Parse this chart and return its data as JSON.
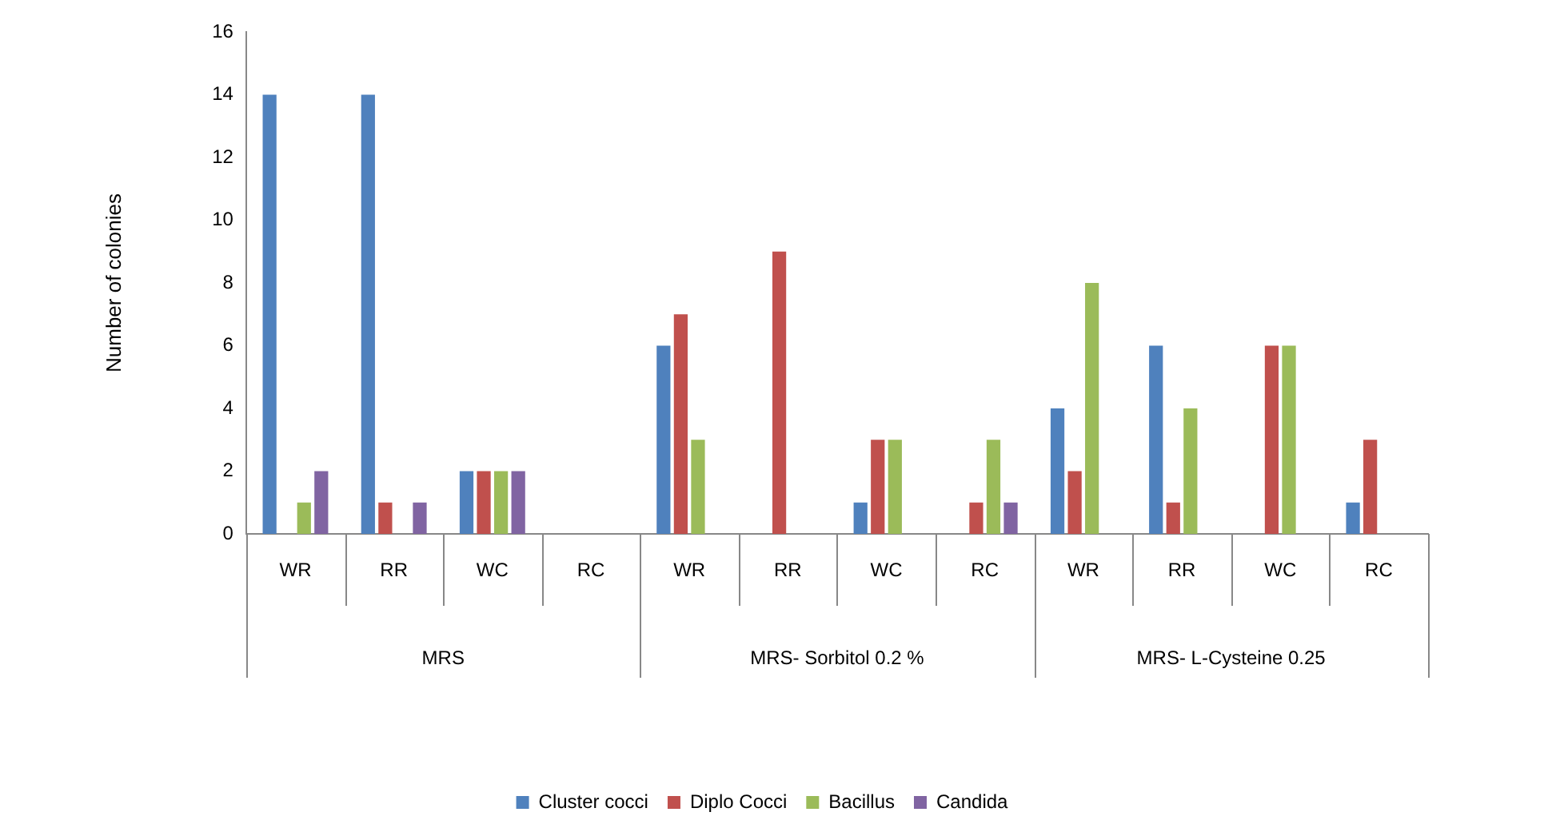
{
  "chart_data": {
    "type": "bar",
    "ylabel": "Number of colonies",
    "categories": [
      "WR",
      "RR",
      "WC",
      "RC",
      "WR",
      "RR",
      "WC",
      "RC",
      "WR",
      "RR",
      "WC",
      "RC"
    ],
    "series": [
      {
        "name": "Cluster cocci",
        "color": "#4f81bd",
        "values": [
          14,
          14,
          2,
          0,
          6,
          0,
          1,
          0,
          4,
          6,
          0,
          1
        ]
      },
      {
        "name": "Diplo Cocci",
        "color": "#c0504d",
        "values": [
          0,
          1,
          2,
          0,
          7,
          9,
          3,
          1,
          2,
          1,
          6,
          3
        ]
      },
      {
        "name": "Bacillus",
        "color": "#9bbb59",
        "values": [
          1,
          0,
          2,
          0,
          3,
          0,
          3,
          3,
          8,
          4,
          6,
          0
        ]
      },
      {
        "name": "Candida",
        "color": "#8064a2",
        "values": [
          2,
          1,
          2,
          0,
          0,
          0,
          0,
          1,
          0,
          0,
          0,
          0
        ]
      }
    ],
    "annotations": [
      "MRS",
      "MRS- Sorbitol 0.2 %",
      "MRS- L-Cysteine 0.25"
    ],
    "ylim": [
      0,
      16
    ],
    "yticks": [
      0,
      2,
      4,
      6,
      8,
      10,
      12,
      14,
      16
    ],
    "grid": false,
    "legend": "bottom"
  }
}
